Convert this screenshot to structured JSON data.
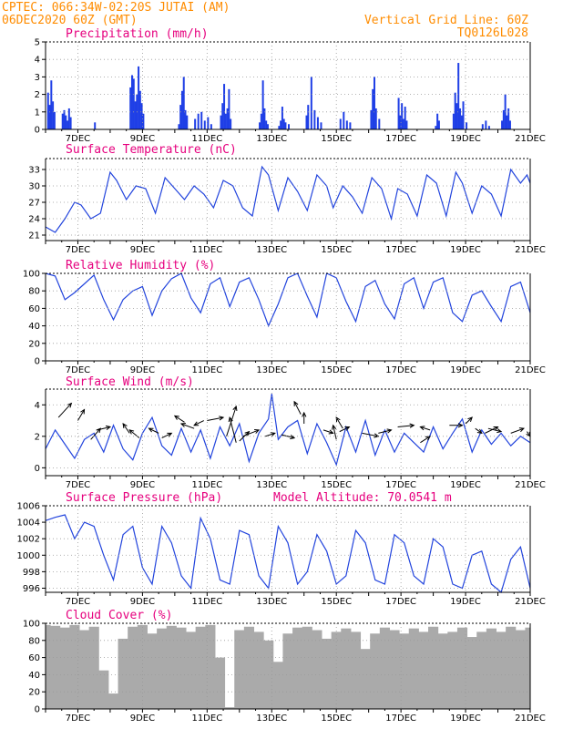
{
  "header": {
    "left_line1": "CPTEC:  066:34W-02:20S  JUTAI (AM)",
    "left_line2": "06DEC2020 60Z (GMT)",
    "right_line1": "Vertical Grid Line: 60Z",
    "right_line2": "TQ0126L028"
  },
  "colors": {
    "line": "#2244dd",
    "bar": "#1f3fe6",
    "cloud": "#aaaaaa",
    "title": "#e6007e",
    "header": "#ff8c00",
    "grid": "#999999"
  },
  "x_axis": {
    "start_day": 6,
    "end_day": 21,
    "tick_labels": [
      "7DEC",
      "9DEC",
      "11DEC",
      "13DEC",
      "15DEC",
      "17DEC",
      "19DEC",
      "21DEC"
    ]
  },
  "chart_data": [
    {
      "type": "bar",
      "title": "Precipitation (mm/h)",
      "ylim": [
        0,
        5
      ],
      "yticks": [
        "0",
        "1",
        "2",
        "3",
        "4",
        "5"
      ],
      "x": [
        6.05,
        6.1,
        6.15,
        6.2,
        6.25,
        6.5,
        6.55,
        6.6,
        6.65,
        6.7,
        6.75,
        7.5,
        8.6,
        8.65,
        8.7,
        8.75,
        8.8,
        8.85,
        8.9,
        8.95,
        9.0,
        10.1,
        10.15,
        10.2,
        10.25,
        10.3,
        10.35,
        10.6,
        10.7,
        10.8,
        10.9,
        11.0,
        11.1,
        11.4,
        11.45,
        11.5,
        11.55,
        11.6,
        11.65,
        11.7,
        12.6,
        12.65,
        12.7,
        12.75,
        12.8,
        12.85,
        13.2,
        13.25,
        13.3,
        13.35,
        13.4,
        13.5,
        14.05,
        14.1,
        14.2,
        14.3,
        14.4,
        14.5,
        15.1,
        15.2,
        15.3,
        15.4,
        16.05,
        16.1,
        16.15,
        16.2,
        16.3,
        16.9,
        16.95,
        17.0,
        17.05,
        17.1,
        17.15,
        18.05,
        18.1,
        18.15,
        18.6,
        18.65,
        18.7,
        18.75,
        18.8,
        18.85,
        18.9,
        19.0,
        19.5,
        19.6,
        19.7,
        20.1,
        20.15,
        20.2,
        20.25,
        20.3,
        20.35
      ],
      "values": [
        2.1,
        1.4,
        2.8,
        1.6,
        1.0,
        0.9,
        1.1,
        0.8,
        0.5,
        1.2,
        0.7,
        0.4,
        2.4,
        3.1,
        2.9,
        1.6,
        2.0,
        3.6,
        2.2,
        1.5,
        0.9,
        0.3,
        1.4,
        2.2,
        3.0,
        1.1,
        0.8,
        0.6,
        0.9,
        1.0,
        0.5,
        0.7,
        0.3,
        0.8,
        1.5,
        2.6,
        0.9,
        1.2,
        2.3,
        0.6,
        0.4,
        0.9,
        2.8,
        1.2,
        0.5,
        0.3,
        0.2,
        0.5,
        1.3,
        0.6,
        0.4,
        0.3,
        0.8,
        1.4,
        3.0,
        1.1,
        0.7,
        0.4,
        0.6,
        1.0,
        0.5,
        0.4,
        1.1,
        2.3,
        3.0,
        1.2,
        0.6,
        1.8,
        0.8,
        1.5,
        0.6,
        1.3,
        0.5,
        0.2,
        0.9,
        0.5,
        0.9,
        2.1,
        1.5,
        3.8,
        1.2,
        0.8,
        1.6,
        0.4,
        0.3,
        0.5,
        0.2,
        0.5,
        1.1,
        2.0,
        0.8,
        1.2,
        0.5
      ]
    },
    {
      "type": "line",
      "title": "Surface Temperature (nC)",
      "ylim": [
        20,
        35
      ],
      "yticks": [
        "21",
        "24",
        "27",
        "30",
        "33"
      ],
      "x": [
        6.0,
        6.3,
        6.6,
        6.9,
        7.1,
        7.4,
        7.7,
        8.0,
        8.2,
        8.5,
        8.8,
        9.1,
        9.4,
        9.7,
        10.0,
        10.3,
        10.6,
        10.9,
        11.2,
        11.5,
        11.8,
        12.1,
        12.4,
        12.7,
        12.9,
        13.2,
        13.5,
        13.8,
        14.1,
        14.4,
        14.7,
        14.9,
        15.2,
        15.5,
        15.8,
        16.1,
        16.4,
        16.7,
        16.9,
        17.2,
        17.5,
        17.8,
        18.1,
        18.4,
        18.7,
        18.9,
        19.2,
        19.5,
        19.8,
        20.1,
        20.4,
        20.7,
        20.9,
        21.0
      ],
      "values": [
        22.5,
        21.5,
        24.0,
        27.0,
        26.5,
        24.0,
        25.0,
        32.5,
        31.0,
        27.5,
        30.0,
        29.5,
        25.0,
        31.5,
        29.5,
        27.5,
        30.0,
        28.5,
        26.0,
        31.0,
        30.0,
        26.0,
        24.5,
        33.5,
        32.0,
        25.5,
        31.5,
        29.0,
        25.5,
        32.0,
        30.0,
        26.0,
        30.0,
        28.0,
        25.0,
        31.5,
        29.5,
        24.0,
        29.5,
        28.5,
        24.5,
        32.0,
        30.5,
        24.5,
        32.5,
        30.5,
        25.0,
        30.0,
        28.5,
        24.5,
        33.0,
        30.5,
        32.0,
        30.5
      ]
    },
    {
      "type": "line",
      "title": "Relative Humidity (%)",
      "ylim": [
        0,
        100
      ],
      "yticks": [
        "0",
        "20",
        "40",
        "60",
        "80",
        "100"
      ],
      "x": [
        6.0,
        6.3,
        6.6,
        6.9,
        7.2,
        7.5,
        7.8,
        8.1,
        8.4,
        8.7,
        9.0,
        9.3,
        9.6,
        9.9,
        10.2,
        10.5,
        10.8,
        11.1,
        11.4,
        11.7,
        12.0,
        12.3,
        12.6,
        12.9,
        13.2,
        13.5,
        13.8,
        14.1,
        14.4,
        14.7,
        15.0,
        15.3,
        15.6,
        15.9,
        16.2,
        16.5,
        16.8,
        17.1,
        17.4,
        17.7,
        18.0,
        18.3,
        18.6,
        18.9,
        19.2,
        19.5,
        19.8,
        20.1,
        20.4,
        20.7,
        21.0
      ],
      "values": [
        100,
        97,
        70,
        78,
        88,
        98,
        70,
        47,
        70,
        80,
        85,
        52,
        80,
        94,
        100,
        72,
        55,
        88,
        95,
        62,
        90,
        95,
        70,
        40,
        65,
        95,
        100,
        74,
        50,
        100,
        95,
        68,
        45,
        85,
        92,
        65,
        48,
        88,
        95,
        60,
        90,
        95,
        55,
        45,
        75,
        80,
        62,
        45,
        85,
        90,
        55
      ],
      "series_name": "",
      "ymax_note": ""
    },
    {
      "type": "line",
      "title": "Surface Wind (m/s)",
      "ylim": [
        -0.5,
        5
      ],
      "yticks": [
        "0",
        "2",
        "4"
      ],
      "x": [
        6.0,
        6.3,
        6.6,
        6.9,
        7.2,
        7.5,
        7.8,
        8.1,
        8.4,
        8.7,
        9.0,
        9.3,
        9.6,
        9.9,
        10.2,
        10.5,
        10.8,
        11.1,
        11.4,
        11.7,
        12.0,
        12.3,
        12.6,
        12.9,
        13.0,
        13.2,
        13.5,
        13.8,
        14.1,
        14.4,
        14.7,
        15.0,
        15.3,
        15.6,
        15.9,
        16.2,
        16.5,
        16.8,
        17.1,
        17.4,
        17.7,
        18.0,
        18.3,
        18.6,
        18.9,
        19.2,
        19.5,
        19.8,
        20.1,
        20.4,
        20.7,
        21.0
      ],
      "values": [
        1.2,
        2.4,
        1.5,
        0.6,
        1.8,
        2.2,
        1.0,
        2.7,
        1.2,
        0.5,
        2.2,
        3.2,
        1.4,
        0.8,
        2.5,
        1.0,
        2.4,
        0.6,
        2.6,
        1.4,
        2.8,
        0.4,
        2.2,
        3.1,
        4.7,
        1.8,
        2.6,
        3.0,
        0.9,
        2.8,
        1.6,
        0.2,
        2.6,
        1.0,
        3.0,
        0.8,
        2.4,
        1.0,
        2.2,
        1.6,
        1.0,
        2.6,
        1.2,
        2.2,
        3.1,
        1.0,
        2.4,
        1.5,
        2.2,
        1.4,
        2.0,
        1.6
      ],
      "arrows": [
        [
          6.4,
          3.2,
          6.8,
          4.1
        ],
        [
          7.0,
          3.0,
          7.2,
          3.7
        ],
        [
          7.4,
          1.8,
          7.7,
          2.5
        ],
        [
          7.6,
          2.4,
          8.0,
          2.6
        ],
        [
          8.6,
          2.2,
          8.4,
          2.8
        ],
        [
          8.9,
          1.9,
          8.6,
          2.4
        ],
        [
          9.5,
          2.2,
          9.2,
          2.5
        ],
        [
          9.6,
          1.9,
          9.9,
          2.2
        ],
        [
          10.3,
          2.9,
          10.0,
          3.3
        ],
        [
          10.6,
          2.5,
          10.2,
          2.8
        ],
        [
          10.9,
          3.0,
          10.6,
          2.7
        ],
        [
          11.0,
          3.0,
          11.5,
          3.2
        ],
        [
          11.6,
          2.0,
          11.9,
          3.9
        ],
        [
          11.9,
          1.6,
          11.7,
          3.2
        ],
        [
          12.0,
          1.7,
          12.3,
          2.3
        ],
        [
          12.1,
          2.0,
          12.6,
          2.4
        ],
        [
          12.8,
          2.0,
          13.1,
          2.2
        ],
        [
          13.3,
          2.1,
          13.7,
          1.9
        ],
        [
          13.9,
          3.4,
          13.7,
          4.2
        ],
        [
          14.0,
          2.8,
          14.0,
          3.5
        ],
        [
          14.6,
          2.4,
          14.9,
          2.2
        ],
        [
          15.0,
          1.8,
          14.9,
          2.7
        ],
        [
          15.1,
          2.3,
          15.4,
          2.6
        ],
        [
          15.2,
          2.5,
          15.0,
          3.2
        ],
        [
          15.8,
          2.2,
          16.3,
          2.0
        ],
        [
          16.3,
          2.2,
          16.7,
          2.4
        ],
        [
          16.9,
          2.6,
          17.4,
          2.7
        ],
        [
          17.6,
          1.6,
          17.9,
          2.0
        ],
        [
          17.9,
          2.4,
          17.6,
          2.6
        ],
        [
          18.5,
          2.7,
          18.9,
          2.7
        ],
        [
          19.0,
          2.8,
          19.2,
          3.2
        ],
        [
          19.3,
          2.5,
          19.5,
          2.2
        ],
        [
          19.6,
          2.2,
          20.0,
          2.6
        ],
        [
          19.7,
          2.5,
          20.1,
          2.3
        ],
        [
          20.4,
          2.2,
          20.8,
          2.5
        ],
        [
          20.9,
          2.3,
          21.0,
          2.0
        ]
      ]
    },
    {
      "type": "line",
      "title": "Surface Pressure (hPa)",
      "subtitle": "Model Altitude: 70.0541 m",
      "ylim": [
        995.5,
        1006
      ],
      "yticks": [
        "996",
        "998",
        "1000",
        "1002",
        "1004",
        "1006"
      ],
      "x": [
        6.0,
        6.3,
        6.6,
        6.9,
        7.2,
        7.5,
        7.8,
        8.1,
        8.4,
        8.7,
        9.0,
        9.3,
        9.6,
        9.9,
        10.2,
        10.5,
        10.8,
        11.1,
        11.4,
        11.7,
        12.0,
        12.3,
        12.6,
        12.9,
        13.2,
        13.5,
        13.8,
        14.1,
        14.4,
        14.7,
        15.0,
        15.3,
        15.6,
        15.9,
        16.2,
        16.5,
        16.8,
        17.1,
        17.4,
        17.7,
        18.0,
        18.3,
        18.6,
        18.9,
        19.2,
        19.5,
        19.8,
        20.1,
        20.4,
        20.7,
        21.0
      ],
      "values": [
        1004.2,
        1004.6,
        1004.9,
        1002.0,
        1004.0,
        1003.5,
        1000.0,
        997.0,
        1002.5,
        1003.5,
        998.5,
        996.5,
        1003.5,
        1001.5,
        997.5,
        996.0,
        1004.5,
        1002.0,
        997.0,
        996.5,
        1003.0,
        1002.5,
        997.5,
        996.0,
        1003.5,
        1001.5,
        996.5,
        998.0,
        1002.5,
        1000.5,
        996.5,
        997.5,
        1003.0,
        1001.5,
        997.0,
        996.5,
        1002.5,
        1001.5,
        997.5,
        996.5,
        1002.0,
        1001.0,
        996.5,
        996.0,
        1000.0,
        1000.5,
        996.5,
        995.5,
        999.5,
        1001.0,
        996.0
      ]
    },
    {
      "type": "bar",
      "title": "Cloud Cover (%)",
      "ylim": [
        0,
        100
      ],
      "yticks": [
        "0",
        "20",
        "40",
        "60",
        "80",
        "100"
      ],
      "x": [
        6.0,
        6.3,
        6.6,
        6.9,
        7.2,
        7.5,
        7.8,
        8.1,
        8.4,
        8.7,
        9.0,
        9.3,
        9.6,
        9.9,
        10.2,
        10.5,
        10.8,
        11.1,
        11.4,
        11.7,
        12.0,
        12.3,
        12.6,
        12.9,
        13.2,
        13.5,
        13.8,
        14.1,
        14.4,
        14.7,
        15.0,
        15.3,
        15.6,
        15.9,
        16.2,
        16.5,
        16.8,
        17.1,
        17.4,
        17.7,
        18.0,
        18.3,
        18.6,
        18.9,
        19.2,
        19.5,
        19.8,
        20.1,
        20.4,
        20.7,
        21.0
      ],
      "values": [
        98,
        97,
        95,
        98,
        92,
        96,
        45,
        18,
        82,
        96,
        98,
        88,
        94,
        97,
        95,
        90,
        96,
        98,
        60,
        2,
        92,
        96,
        90,
        80,
        55,
        88,
        95,
        96,
        92,
        82,
        90,
        94,
        90,
        70,
        88,
        95,
        92,
        88,
        94,
        90,
        96,
        88,
        90,
        95,
        84,
        90,
        94,
        90,
        96,
        92,
        95
      ]
    }
  ]
}
